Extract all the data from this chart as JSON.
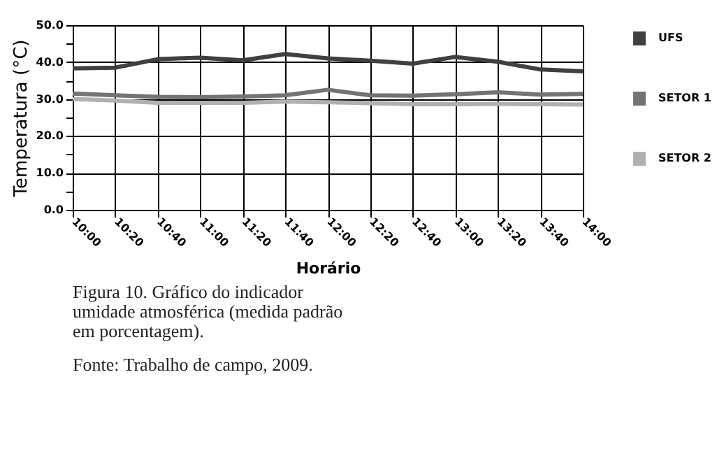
{
  "chart_data": {
    "type": "line",
    "xlabel": "Horário",
    "ylabel": "Temperatura (°C)",
    "categories": [
      "10:00",
      "10:20",
      "10:40",
      "11:00",
      "11:20",
      "11:40",
      "12:00",
      "12:20",
      "12:40",
      "13:00",
      "13:20",
      "13:40",
      "14:00"
    ],
    "series": [
      {
        "name": "UFS",
        "color": "#404040",
        "values": [
          38.3,
          38.5,
          40.8,
          41.2,
          40.5,
          42.2,
          41.0,
          40.4,
          39.6,
          41.4,
          40.1,
          38.0,
          37.5
        ]
      },
      {
        "name": "SETOR 1",
        "color": "#737373",
        "values": [
          31.5,
          31.0,
          30.6,
          30.5,
          30.7,
          31.0,
          32.5,
          31.0,
          30.9,
          31.3,
          31.8,
          31.2,
          31.4
        ]
      },
      {
        "name": "SETOR 2",
        "color": "#b0b0b0",
        "values": [
          30.0,
          29.6,
          29.0,
          29.0,
          29.0,
          29.3,
          29.1,
          28.9,
          28.6,
          28.6,
          28.7,
          28.6,
          28.5
        ]
      }
    ],
    "ylim": [
      0,
      50
    ],
    "yticks": [
      {
        "value": 0,
        "label": "0.0"
      },
      {
        "value": 5,
        "label": null
      },
      {
        "value": 10,
        "label": "10.0"
      },
      {
        "value": 15,
        "label": null
      },
      {
        "value": 20,
        "label": "20.0"
      },
      {
        "value": 25,
        "label": null
      },
      {
        "value": 30,
        "label": "30.0"
      },
      {
        "value": 35,
        "label": null
      },
      {
        "value": 40,
        "label": "40.0"
      },
      {
        "value": 45,
        "label": null
      },
      {
        "value": 50,
        "label": "50.0"
      }
    ],
    "grid": true,
    "legend": "right",
    "marker": "none",
    "line_style": "solid",
    "annotations": [
      "Figura 10. Gráfico do indicador umidade atmosférica (medida padrão em porcentagem).",
      "Fonte: Trabalho de campo, 2009."
    ]
  }
}
